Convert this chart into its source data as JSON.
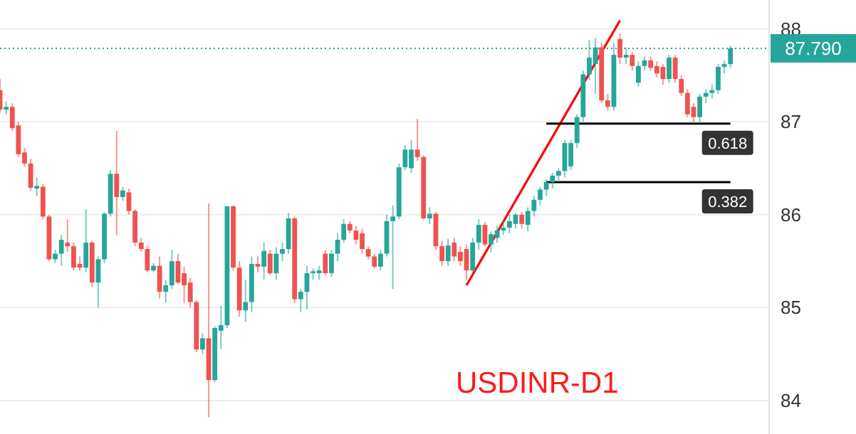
{
  "chart_data": {
    "type": "candlestick",
    "categories": [
      null,
      null,
      null,
      null,
      null,
      null,
      null,
      null,
      null,
      null,
      null,
      null,
      null,
      null,
      null,
      null,
      null,
      null,
      null,
      null,
      null,
      null,
      null,
      null,
      null,
      null,
      null,
      null,
      null,
      null,
      null,
      null,
      null,
      null,
      null,
      null,
      null,
      null,
      null,
      null,
      null,
      null,
      null,
      null,
      null,
      null,
      null,
      null,
      null,
      null,
      null,
      null,
      null,
      null,
      null,
      null,
      null,
      null,
      null,
      null,
      null,
      null,
      null,
      null,
      null,
      null,
      null,
      null,
      null,
      null,
      null,
      null,
      null,
      null,
      null,
      null,
      null,
      null,
      null,
      null,
      null,
      null,
      null,
      null,
      null,
      null,
      null,
      null,
      null,
      null,
      null,
      null,
      null,
      null,
      null,
      null,
      null,
      null,
      null,
      null,
      null,
      null,
      null,
      null,
      null,
      null,
      null,
      null,
      null,
      null,
      null,
      null,
      null,
      null,
      null,
      null,
      null,
      null,
      null,
      null
    ],
    "ohlc": [
      [
        87.34,
        87.46,
        87.1,
        87.13
      ],
      [
        87.13,
        87.22,
        87.08,
        87.16
      ],
      [
        87.16,
        87.2,
        86.9,
        86.93
      ],
      [
        86.96,
        87.0,
        86.62,
        86.65
      ],
      [
        86.67,
        86.72,
        86.52,
        86.55
      ],
      [
        86.55,
        86.6,
        86.26,
        86.29
      ],
      [
        86.28,
        86.4,
        86.2,
        86.31
      ],
      [
        86.3,
        86.33,
        85.95,
        85.98
      ],
      [
        85.98,
        86.0,
        85.5,
        85.52
      ],
      [
        85.52,
        85.62,
        85.48,
        85.58
      ],
      [
        85.58,
        85.78,
        85.45,
        85.73
      ],
      [
        85.7,
        85.95,
        85.6,
        85.66
      ],
      [
        85.66,
        85.7,
        85.4,
        85.43
      ],
      [
        85.47,
        85.55,
        85.4,
        85.43
      ],
      [
        85.43,
        86.06,
        85.38,
        85.7
      ],
      [
        85.7,
        85.72,
        85.22,
        85.27
      ],
      [
        85.27,
        85.55,
        85.0,
        85.52
      ],
      [
        85.52,
        86.03,
        85.48,
        86.01
      ],
      [
        86.01,
        86.48,
        85.98,
        86.44
      ],
      [
        86.44,
        86.9,
        85.78,
        86.19
      ],
      [
        86.19,
        86.3,
        86.15,
        86.26
      ],
      [
        86.24,
        86.28,
        86.0,
        86.04
      ],
      [
        86.04,
        86.06,
        85.66,
        85.7
      ],
      [
        85.7,
        85.75,
        85.6,
        85.63
      ],
      [
        85.63,
        85.66,
        85.38,
        85.4
      ],
      [
        85.4,
        85.48,
        85.38,
        85.45
      ],
      [
        85.45,
        85.55,
        85.1,
        85.17
      ],
      [
        85.17,
        85.3,
        85.05,
        85.24
      ],
      [
        85.24,
        85.62,
        85.2,
        85.5
      ],
      [
        85.5,
        85.58,
        85.25,
        85.27
      ],
      [
        85.37,
        85.44,
        85.05,
        85.24
      ],
      [
        85.27,
        85.32,
        85.0,
        85.06
      ],
      [
        85.06,
        85.08,
        84.52,
        84.55
      ],
      [
        84.55,
        84.72,
        84.5,
        84.67
      ],
      [
        84.67,
        86.12,
        83.82,
        84.22
      ],
      [
        84.22,
        84.8,
        84.2,
        84.78
      ],
      [
        84.75,
        85.02,
        84.55,
        84.81
      ],
      [
        84.81,
        86.09,
        84.78,
        86.09
      ],
      [
        86.09,
        86.1,
        85.4,
        85.43
      ],
      [
        85.43,
        85.5,
        84.9,
        84.97
      ],
      [
        84.97,
        85.3,
        84.85,
        85.06
      ],
      [
        85.06,
        85.55,
        84.95,
        85.47
      ],
      [
        85.47,
        85.55,
        85.38,
        85.44
      ],
      [
        85.44,
        85.7,
        85.3,
        85.61
      ],
      [
        85.58,
        85.62,
        85.35,
        85.37
      ],
      [
        85.37,
        85.65,
        85.3,
        85.58
      ],
      [
        85.58,
        85.7,
        85.5,
        85.63
      ],
      [
        85.63,
        86.02,
        85.58,
        85.96
      ],
      [
        85.96,
        85.98,
        85.05,
        85.09
      ],
      [
        85.09,
        85.2,
        84.95,
        85.17
      ],
      [
        85.17,
        85.45,
        84.98,
        85.37
      ],
      [
        85.37,
        85.42,
        85.3,
        85.39
      ],
      [
        85.37,
        85.45,
        85.3,
        85.4
      ],
      [
        85.58,
        85.62,
        85.35,
        85.37
      ],
      [
        85.37,
        85.62,
        85.33,
        85.58
      ],
      [
        85.58,
        85.8,
        85.5,
        85.73
      ],
      [
        85.73,
        85.95,
        85.7,
        85.9
      ],
      [
        85.9,
        85.93,
        85.8,
        85.83
      ],
      [
        85.83,
        85.88,
        85.68,
        85.73
      ],
      [
        85.8,
        85.85,
        85.58,
        85.63
      ],
      [
        85.63,
        85.66,
        85.52,
        85.55
      ],
      [
        85.55,
        85.58,
        85.42,
        85.44
      ],
      [
        85.44,
        85.62,
        85.4,
        85.58
      ],
      [
        85.58,
        86.0,
        85.55,
        85.93
      ],
      [
        85.93,
        86.1,
        85.2,
        85.98
      ],
      [
        85.98,
        86.55,
        85.95,
        86.51
      ],
      [
        86.51,
        86.75,
        86.48,
        86.7
      ],
      [
        86.5,
        86.8,
        86.45,
        86.7
      ],
      [
        86.7,
        87.03,
        86.58,
        86.62
      ],
      [
        86.62,
        86.64,
        85.95,
        85.96
      ],
      [
        85.96,
        86.08,
        85.9,
        86.01
      ],
      [
        86.01,
        86.03,
        85.62,
        85.66
      ],
      [
        85.66,
        85.72,
        85.45,
        85.5
      ],
      [
        85.5,
        85.74,
        85.45,
        85.67
      ],
      [
        85.7,
        85.75,
        85.5,
        85.55
      ],
      [
        85.6,
        85.66,
        85.45,
        85.5
      ],
      [
        85.63,
        85.68,
        85.3,
        85.4
      ],
      [
        85.4,
        85.75,
        85.36,
        85.7
      ],
      [
        85.7,
        85.95,
        85.62,
        85.89
      ],
      [
        85.89,
        85.92,
        85.66,
        85.68
      ],
      [
        85.68,
        85.82,
        85.6,
        85.79
      ],
      [
        85.75,
        85.88,
        85.7,
        85.83
      ],
      [
        85.83,
        85.95,
        85.78,
        85.86
      ],
      [
        85.86,
        86.0,
        85.8,
        85.93
      ],
      [
        85.9,
        86.02,
        85.85,
        86.0
      ],
      [
        86.0,
        86.03,
        85.85,
        85.9
      ],
      [
        85.89,
        86.08,
        85.82,
        86.04
      ],
      [
        86.04,
        86.2,
        85.98,
        86.16
      ],
      [
        86.16,
        86.3,
        86.1,
        86.27
      ],
      [
        86.27,
        86.38,
        86.2,
        86.35
      ],
      [
        86.35,
        86.45,
        86.28,
        86.42
      ],
      [
        86.42,
        86.5,
        86.35,
        86.47
      ],
      [
        86.47,
        86.8,
        86.4,
        86.77
      ],
      [
        86.52,
        86.8,
        86.48,
        86.77
      ],
      [
        86.77,
        87.08,
        86.72,
        87.05
      ],
      [
        87.05,
        87.55,
        87.0,
        87.51
      ],
      [
        87.51,
        87.88,
        87.45,
        87.69
      ],
      [
        87.62,
        87.9,
        87.3,
        87.8
      ],
      [
        87.8,
        87.85,
        87.2,
        87.23
      ],
      [
        87.23,
        87.3,
        87.12,
        87.16
      ],
      [
        87.16,
        87.85,
        87.12,
        87.72
      ],
      [
        87.89,
        87.95,
        87.62,
        87.69
      ],
      [
        87.69,
        87.8,
        87.62,
        87.72
      ],
      [
        87.72,
        87.75,
        87.55,
        87.6
      ],
      [
        87.42,
        87.65,
        87.38,
        87.6
      ],
      [
        87.6,
        87.7,
        87.55,
        87.66
      ],
      [
        87.66,
        87.7,
        87.55,
        87.58
      ],
      [
        87.6,
        87.65,
        87.48,
        87.52
      ],
      [
        87.59,
        87.62,
        87.4,
        87.46
      ],
      [
        87.46,
        87.72,
        87.42,
        87.69
      ],
      [
        87.69,
        87.72,
        87.42,
        87.46
      ],
      [
        87.46,
        87.5,
        87.28,
        87.31
      ],
      [
        87.31,
        87.35,
        87.05,
        87.08
      ],
      [
        87.16,
        87.2,
        86.98,
        87.05
      ],
      [
        87.05,
        87.3,
        87.0,
        87.27
      ],
      [
        87.27,
        87.35,
        87.2,
        87.31
      ],
      [
        87.31,
        87.4,
        87.25,
        87.34
      ],
      [
        87.34,
        87.62,
        87.3,
        87.59
      ],
      [
        87.59,
        87.66,
        87.52,
        87.62
      ],
      [
        87.62,
        87.82,
        87.58,
        87.79
      ]
    ],
    "series": [
      {
        "type": "line",
        "color": "#ff0000",
        "values": [
          null,
          null,
          null,
          null,
          null,
          null,
          null,
          null,
          null,
          null,
          null,
          null,
          null,
          null,
          null,
          null,
          null,
          null,
          null,
          null,
          null,
          null,
          null,
          null,
          null,
          null,
          null,
          null,
          null,
          null,
          null,
          null,
          null,
          null,
          null,
          null,
          null,
          null,
          null,
          null,
          null,
          null,
          null,
          null,
          null,
          null,
          null,
          null,
          null,
          null,
          null,
          null,
          null,
          null,
          null,
          null,
          null,
          null,
          null,
          null,
          null,
          null,
          null,
          null,
          null,
          null,
          null,
          null,
          null,
          null,
          null,
          null,
          null,
          null,
          null,
          null,
          85.24,
          null,
          null,
          null,
          null,
          null,
          null,
          null,
          null,
          null,
          null,
          null,
          null,
          null,
          null,
          null,
          null,
          null,
          null,
          null,
          null,
          null,
          null,
          null,
          null,
          88.09,
          null,
          null,
          null,
          null,
          null,
          null,
          null,
          null,
          null,
          null,
          null,
          null,
          null,
          null,
          null,
          null,
          null,
          null
        ]
      },
      {
        "type": "line",
        "name": "0.618",
        "color": "#000000",
        "values": [
          null,
          null,
          null,
          null,
          null,
          null,
          null,
          null,
          null,
          null,
          null,
          null,
          null,
          null,
          null,
          null,
          null,
          null,
          null,
          null,
          null,
          null,
          null,
          null,
          null,
          null,
          null,
          null,
          null,
          null,
          null,
          null,
          null,
          null,
          null,
          null,
          null,
          null,
          null,
          null,
          null,
          null,
          null,
          null,
          null,
          null,
          null,
          null,
          null,
          null,
          null,
          null,
          null,
          null,
          null,
          null,
          null,
          null,
          null,
          null,
          null,
          null,
          null,
          null,
          null,
          null,
          null,
          null,
          null,
          null,
          null,
          null,
          null,
          null,
          null,
          null,
          null,
          null,
          null,
          null,
          null,
          null,
          null,
          null,
          null,
          null,
          null,
          null,
          null,
          86.98,
          86.98,
          86.98,
          86.98,
          86.98,
          86.98,
          86.98,
          86.98,
          86.98,
          86.98,
          86.98,
          86.98,
          86.98,
          86.98,
          86.98,
          86.98,
          86.98,
          86.98,
          86.98,
          86.98,
          86.98,
          86.98,
          86.98,
          86.98,
          86.98,
          86.98,
          86.98,
          86.98,
          86.98,
          86.98,
          86.98
        ]
      },
      {
        "type": "line",
        "name": "0.382",
        "color": "#000000",
        "values": [
          null,
          null,
          null,
          null,
          null,
          null,
          null,
          null,
          null,
          null,
          null,
          null,
          null,
          null,
          null,
          null,
          null,
          null,
          null,
          null,
          null,
          null,
          null,
          null,
          null,
          null,
          null,
          null,
          null,
          null,
          null,
          null,
          null,
          null,
          null,
          null,
          null,
          null,
          null,
          null,
          null,
          null,
          null,
          null,
          null,
          null,
          null,
          null,
          null,
          null,
          null,
          null,
          null,
          null,
          null,
          null,
          null,
          null,
          null,
          null,
          null,
          null,
          null,
          null,
          null,
          null,
          null,
          null,
          null,
          null,
          null,
          null,
          null,
          null,
          null,
          null,
          null,
          null,
          null,
          null,
          null,
          null,
          null,
          null,
          null,
          null,
          null,
          null,
          null,
          86.35,
          86.35,
          86.35,
          86.35,
          86.35,
          86.35,
          86.35,
          86.35,
          86.35,
          86.35,
          86.35,
          86.35,
          86.35,
          86.35,
          86.35,
          86.35,
          86.35,
          86.35,
          86.35,
          86.35,
          86.35,
          86.35,
          86.35,
          86.35,
          86.35,
          86.35,
          86.35,
          86.35,
          86.35,
          86.35,
          86.35
        ]
      }
    ],
    "ylim": [
      83.64,
      88.31
    ],
    "yticks": [
      84,
      85,
      86,
      87,
      88
    ],
    "grid": "y",
    "tick_labels": "y",
    "ref_lines": [
      {
        "axis": "y",
        "value": 87.79,
        "label": "87.790",
        "color": "#26a69a",
        "line_style": "dotted"
      }
    ],
    "annotations": [
      "USDINR-D1"
    ]
  }
}
